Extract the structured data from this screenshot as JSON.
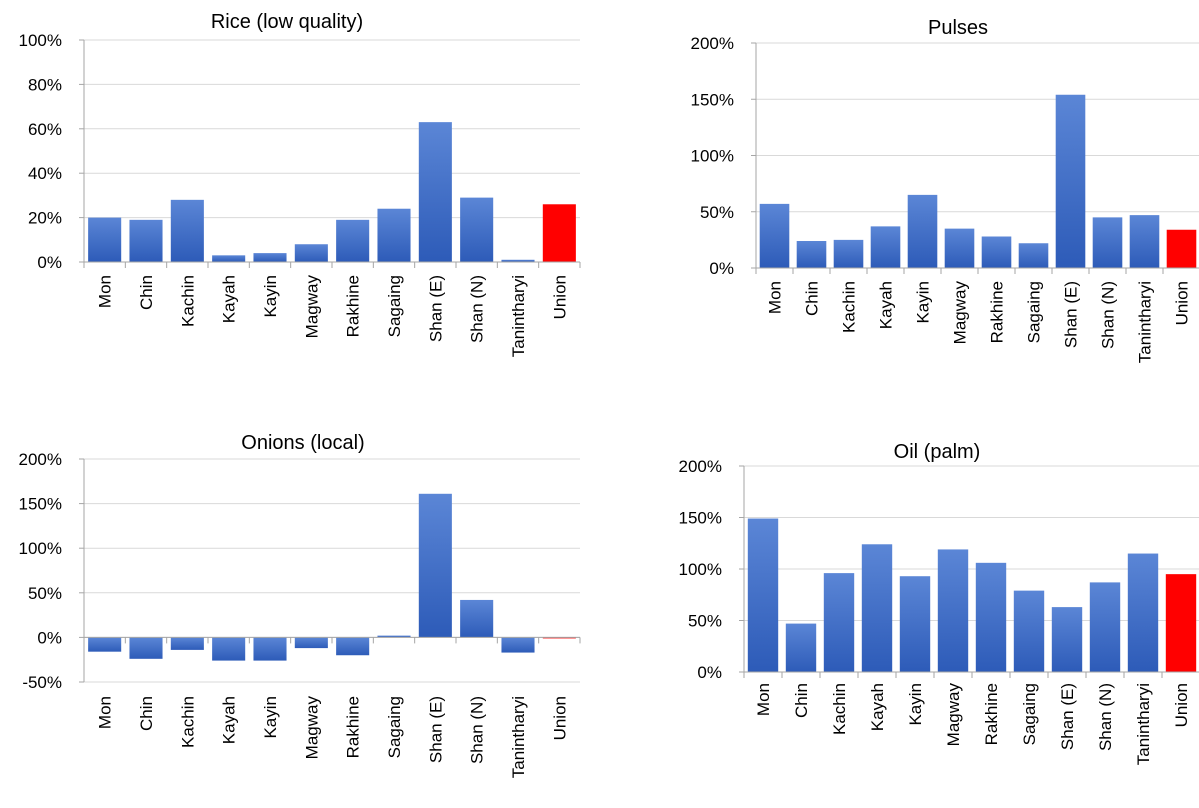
{
  "chart_data": [
    {
      "type": "bar",
      "title": "Rice (low quality)",
      "categories": [
        "Mon",
        "Chin",
        "Kachin",
        "Kayah",
        "Kayin",
        "Magway",
        "Rakhine",
        "Sagaing",
        "Shan (E)",
        "Shan (N)",
        "Tanintharyi",
        "Union"
      ],
      "values": [
        20,
        19,
        28,
        3,
        4,
        8,
        19,
        24,
        63,
        29,
        1,
        26
      ],
      "ylim": [
        0,
        100
      ],
      "yticks": [
        "0%",
        "20%",
        "40%",
        "60%",
        "80%",
        "100%"
      ],
      "grid": true,
      "colors": {
        "bar": "#4472c4",
        "highlight": "#ff0000"
      },
      "highlight_category": "Union"
    },
    {
      "type": "bar",
      "title": "Pulses",
      "categories": [
        "Mon",
        "Chin",
        "Kachin",
        "Kayah",
        "Kayin",
        "Magway",
        "Rakhine",
        "Sagaing",
        "Shan (E)",
        "Shan (N)",
        "Tanintharyi",
        "Union"
      ],
      "values": [
        57,
        24,
        25,
        37,
        65,
        35,
        28,
        22,
        154,
        45,
        47,
        34
      ],
      "ylim": [
        0,
        200
      ],
      "yticks": [
        "0%",
        "50%",
        "100%",
        "150%",
        "200%"
      ],
      "grid": true,
      "colors": {
        "bar": "#4472c4",
        "highlight": "#ff0000"
      },
      "highlight_category": "Union"
    },
    {
      "type": "bar",
      "title": "Onions (local)",
      "categories": [
        "Mon",
        "Chin",
        "Kachin",
        "Kayah",
        "Kayin",
        "Magway",
        "Rakhine",
        "Sagaing",
        "Shan (E)",
        "Shan (N)",
        "Tanintharyi",
        "Union"
      ],
      "values": [
        -16,
        -24,
        -14,
        -26,
        -26,
        -12,
        -20,
        2,
        161,
        42,
        -17,
        -1
      ],
      "ylim": [
        -50,
        200
      ],
      "yticks": [
        "-50%",
        "0%",
        "50%",
        "100%",
        "150%",
        "200%"
      ],
      "grid": true,
      "colors": {
        "bar": "#4472c4",
        "highlight": "#ff0000"
      },
      "highlight_category": "Union"
    },
    {
      "type": "bar",
      "title": "Oil (palm)",
      "categories": [
        "Mon",
        "Chin",
        "Kachin",
        "Kayah",
        "Kayin",
        "Magway",
        "Rakhine",
        "Sagaing",
        "Shan (E)",
        "Shan (N)",
        "Tanintharyi",
        "Union"
      ],
      "values": [
        149,
        47,
        96,
        124,
        93,
        119,
        106,
        79,
        63,
        87,
        115,
        95
      ],
      "ylim": [
        0,
        200
      ],
      "yticks": [
        "0%",
        "50%",
        "100%",
        "150%",
        "200%"
      ],
      "grid": true,
      "colors": {
        "bar": "#4472c4",
        "highlight": "#ff0000"
      },
      "highlight_category": "Union"
    }
  ]
}
